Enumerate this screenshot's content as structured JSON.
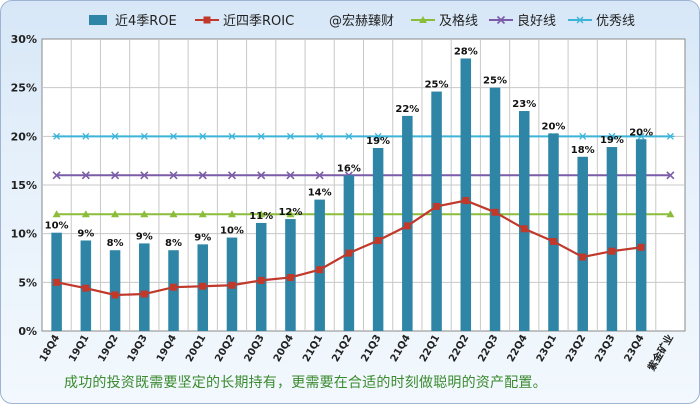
{
  "chart_data": {
    "type": "bar",
    "title": "",
    "xlabel": "",
    "ylabel": "",
    "ylim": [
      0,
      30
    ],
    "y_ticks": [
      "0%",
      "5%",
      "10%",
      "15%",
      "20%",
      "25%",
      "30%"
    ],
    "grid": true,
    "legend_position": "top",
    "categories": [
      "18Q4",
      "19Q1",
      "19Q2",
      "19Q3",
      "19Q4",
      "20Q1",
      "20Q2",
      "20Q3",
      "20Q4",
      "21Q1",
      "21Q2",
      "21Q3",
      "21Q4",
      "22Q1",
      "22Q2",
      "22Q3",
      "22Q4",
      "23Q1",
      "23Q2",
      "23Q3",
      "23Q4",
      "紫金矿业"
    ],
    "series": [
      {
        "name": "近4季ROE",
        "kind": "bar",
        "color": "#2e85a6",
        "values": [
          10.1,
          9.3,
          8.3,
          9.0,
          8.3,
          8.9,
          9.6,
          11.1,
          11.5,
          13.5,
          16.0,
          18.8,
          22.1,
          24.6,
          28.0,
          25.0,
          22.6,
          20.3,
          17.9,
          18.9,
          19.7,
          null
        ],
        "labels": [
          "10%",
          "9%",
          "8%",
          "9%",
          "8%",
          "9%",
          "10%",
          "11%",
          "12%",
          "14%",
          "16%",
          "19%",
          "22%",
          "25%",
          "28%",
          "25%",
          "23%",
          "20%",
          "18%",
          "19%",
          "20%",
          ""
        ]
      },
      {
        "name": "近四季ROIC",
        "kind": "line",
        "color": "#c0392b",
        "marker": "square",
        "values": [
          5.0,
          4.4,
          3.7,
          3.8,
          4.5,
          4.6,
          4.7,
          5.2,
          5.5,
          6.3,
          8.0,
          9.3,
          10.8,
          12.8,
          13.4,
          12.2,
          10.5,
          9.2,
          7.6,
          8.2,
          8.6,
          null
        ]
      },
      {
        "name": "及格线",
        "kind": "line",
        "color": "#8bbd3a",
        "marker": "triangle",
        "values": [
          12,
          12,
          12,
          12,
          12,
          12,
          12,
          12,
          12,
          12,
          12,
          12,
          12,
          12,
          12,
          12,
          12,
          12,
          12,
          12,
          12,
          12
        ]
      },
      {
        "name": "良好线",
        "kind": "line",
        "color": "#7a5ca8",
        "marker": "x",
        "values": [
          16,
          16,
          16,
          16,
          16,
          16,
          16,
          16,
          16,
          16,
          16,
          16,
          16,
          16,
          16,
          16,
          16,
          16,
          16,
          16,
          16,
          16
        ]
      },
      {
        "name": "优秀线",
        "kind": "line",
        "color": "#3cb4d8",
        "marker": "star",
        "values": [
          20,
          20,
          20,
          20,
          20,
          20,
          20,
          20,
          20,
          20,
          20,
          20,
          20,
          20,
          20,
          20,
          20,
          20,
          20,
          20,
          20,
          20
        ]
      }
    ],
    "watermark": "@宏赫臻财"
  },
  "caption": "成功的投资既需要坚定的长期持有，更需要在合适的时刻做聪明的资产配置。"
}
